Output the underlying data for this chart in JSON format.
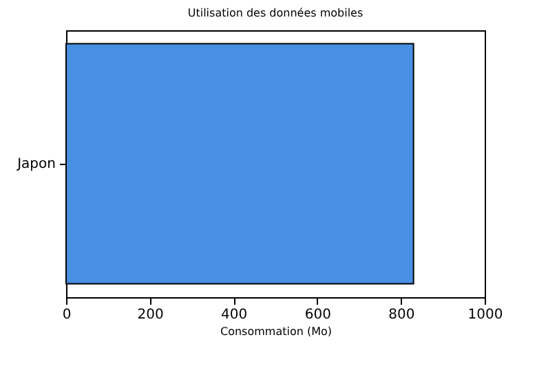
{
  "chart_data": {
    "type": "bar",
    "orientation": "horizontal",
    "title": "Utilisation des données mobiles",
    "xlabel": "Consommation (Mo)",
    "categories": [
      "Japon"
    ],
    "values": [
      830
    ],
    "color": "#4a90e2",
    "xlim": [
      0,
      1000
    ],
    "xticks": [
      0,
      200,
      400,
      600,
      800,
      1000
    ],
    "grid": false
  }
}
